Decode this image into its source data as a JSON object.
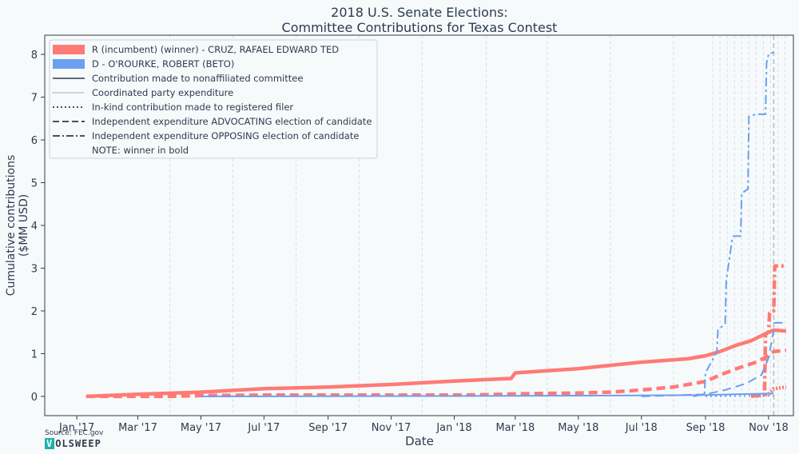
{
  "chart_data": {
    "type": "line",
    "title": "2018 U.S. Senate Elections:",
    "subtitle": "Committee Contributions for Texas Contest",
    "xlabel": "Date",
    "ylabel_line1": "Cumulative contributions",
    "ylabel_line2": "($MM USD)",
    "x_ticks": [
      "Jan '17",
      "Mar '17",
      "May '17",
      "Jul '17",
      "Sep '17",
      "Nov '17",
      "Jan '18",
      "Mar '18",
      "May '18",
      "Jul '18",
      "Sep '18",
      "Nov '18"
    ],
    "x_tick_dates": [
      "2017-01-01",
      "2017-03-01",
      "2017-05-01",
      "2017-07-01",
      "2017-09-01",
      "2017-11-01",
      "2018-01-01",
      "2018-03-01",
      "2018-05-01",
      "2018-07-01",
      "2018-09-01",
      "2018-11-01"
    ],
    "xlim": [
      "2016-12-01",
      "2018-11-25"
    ],
    "y_ticks": [
      "0",
      "1",
      "2",
      "3",
      "4",
      "5",
      "6",
      "7",
      "8"
    ],
    "ylim": [
      -0.45,
      8.45
    ],
    "election_day": "2018-11-06",
    "grid": "vertical dashed at Apr/Jun/Aug/Oct/Dec of each year and weekly during Sep–Nov 2018",
    "legend_position": "top-left",
    "legend": {
      "party": [
        {
          "label": "R (incumbent) (winner) - CRUZ, RAFAEL EDWARD  TED",
          "color": "#ff7a75"
        },
        {
          "label": "D - O'ROURKE, ROBERT (BETO)",
          "color": "#6b9ff0"
        }
      ],
      "styles": [
        {
          "label": "Contribution made to nonaffiliated committee",
          "dash": "solid"
        },
        {
          "label": "Coordinated party expenditure",
          "dash": "fine-dotted"
        },
        {
          "label": "In-kind contribution made to registered filer",
          "dash": "dotted"
        },
        {
          "label": "Independent expenditure ADVOCATING election of candidate",
          "dash": "dashed"
        },
        {
          "label": "Independent expenditure OPPOSING election of candidate",
          "dash": "dash-dot"
        }
      ],
      "note": "NOTE: winner in bold"
    },
    "series": [
      {
        "name": "R - Contribution made to nonaffiliated committee",
        "color": "#ff7a75",
        "bold": true,
        "dash": "solid",
        "x": [
          "2017-01-10",
          "2017-03-01",
          "2017-05-01",
          "2017-07-01",
          "2017-09-01",
          "2017-11-01",
          "2018-01-01",
          "2018-02-25",
          "2018-03-01",
          "2018-05-01",
          "2018-07-01",
          "2018-08-15",
          "2018-09-01",
          "2018-09-15",
          "2018-10-01",
          "2018-10-15",
          "2018-10-25",
          "2018-11-01",
          "2018-11-06",
          "2018-11-18"
        ],
        "y": [
          0.0,
          0.05,
          0.1,
          0.18,
          0.22,
          0.28,
          0.36,
          0.42,
          0.55,
          0.65,
          0.8,
          0.88,
          0.95,
          1.05,
          1.2,
          1.3,
          1.42,
          1.5,
          1.55,
          1.53
        ]
      },
      {
        "name": "R - Coordinated party expenditure",
        "color": "#ff7a75",
        "bold": true,
        "dash": "fine-dotted",
        "x": [
          "2018-10-20",
          "2018-11-01",
          "2018-11-06",
          "2018-11-18"
        ],
        "y": [
          0.0,
          0.05,
          0.18,
          0.22
        ]
      },
      {
        "name": "R - Independent expenditure ADVOCATING election of candidate",
        "color": "#ff7a75",
        "bold": true,
        "dash": "dashed",
        "x": [
          "2017-01-10",
          "2017-04-01",
          "2017-05-01",
          "2017-07-01",
          "2017-09-01",
          "2017-11-01",
          "2018-01-01",
          "2018-02-01",
          "2018-03-01",
          "2018-05-01",
          "2018-06-01",
          "2018-07-01",
          "2018-08-01",
          "2018-09-01",
          "2018-09-15",
          "2018-10-01",
          "2018-10-20",
          "2018-11-01",
          "2018-11-06",
          "2018-11-18"
        ],
        "y": [
          0.0,
          0.0,
          0.02,
          0.03,
          0.03,
          0.03,
          0.03,
          0.04,
          0.06,
          0.08,
          0.1,
          0.15,
          0.22,
          0.35,
          0.5,
          0.65,
          0.8,
          0.95,
          1.05,
          1.08
        ]
      },
      {
        "name": "R - Independent expenditure OPPOSING election of candidate",
        "color": "#ff7a75",
        "bold": true,
        "dash": "dash-dot",
        "x": [
          "2018-10-15",
          "2018-10-28",
          "2018-10-29",
          "2018-11-01",
          "2018-11-02",
          "2018-11-06",
          "2018-11-07",
          "2018-11-18"
        ],
        "y": [
          0.0,
          0.05,
          1.45,
          1.5,
          1.95,
          2.0,
          3.05,
          3.05
        ]
      },
      {
        "name": "D - Contribution made to nonaffiliated committee",
        "color": "#6b9ff0",
        "bold": false,
        "dash": "solid",
        "x": [
          "2017-05-01",
          "2018-01-01",
          "2018-06-01",
          "2018-09-01",
          "2018-10-01",
          "2018-11-06"
        ],
        "y": [
          0.0,
          0.01,
          0.02,
          0.03,
          0.05,
          0.07
        ]
      },
      {
        "name": "D - Independent expenditure ADVOCATING election of candidate",
        "color": "#6b9ff0",
        "bold": false,
        "dash": "dashed",
        "x": [
          "2018-07-01",
          "2018-09-01",
          "2018-09-20",
          "2018-10-10",
          "2018-10-25",
          "2018-11-01",
          "2018-11-06"
        ],
        "y": [
          0.0,
          0.05,
          0.15,
          0.3,
          0.5,
          0.9,
          1.55
        ]
      },
      {
        "name": "D - Independent expenditure OPPOSING election of candidate",
        "color": "#6b9ff0",
        "bold": false,
        "dash": "dash-dot",
        "x": [
          "2018-08-20",
          "2018-08-31",
          "2018-09-01",
          "2018-09-12",
          "2018-09-13",
          "2018-09-20",
          "2018-09-21",
          "2018-09-27",
          "2018-09-28",
          "2018-10-05",
          "2018-10-06",
          "2018-10-12",
          "2018-10-13",
          "2018-10-20",
          "2018-10-21",
          "2018-10-29",
          "2018-10-30",
          "2018-11-01",
          "2018-11-02",
          "2018-11-06"
        ],
        "y": [
          0.0,
          0.05,
          0.55,
          1.05,
          1.55,
          1.7,
          2.7,
          3.7,
          3.75,
          3.75,
          4.75,
          4.85,
          6.55,
          6.6,
          6.6,
          6.6,
          7.8,
          8.0,
          8.02,
          8.05
        ]
      },
      {
        "name": "D - In-kind contribution made to registered filer",
        "color": "#6b9ff0",
        "bold": false,
        "dash": "dotted",
        "x": [
          "2018-09-01",
          "2018-11-06"
        ],
        "y": [
          0.0,
          0.02
        ]
      },
      {
        "name": "D - Independent expenditure ADVOCATING election of candidate (post)",
        "color": "#6b9ff0",
        "bold": false,
        "dash": "dashed",
        "x": [
          "2018-11-06",
          "2018-11-18"
        ],
        "y": [
          1.72,
          1.72
        ]
      }
    ]
  },
  "footer": {
    "source": "Source: FEC.gov",
    "logo_first": "V",
    "logo_rest": "OLSWEEP"
  }
}
